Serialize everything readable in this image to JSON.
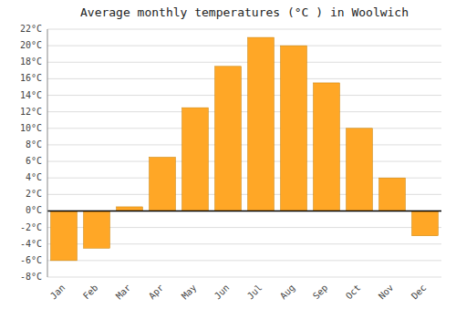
{
  "chart_data": {
    "type": "bar",
    "title": "Average monthly temperatures (°C ) in Woolwich",
    "categories": [
      "Jan",
      "Feb",
      "Mar",
      "Apr",
      "May",
      "Jun",
      "Jul",
      "Aug",
      "Sep",
      "Oct",
      "Nov",
      "Dec"
    ],
    "values": [
      -6.0,
      -4.5,
      0.5,
      6.5,
      12.5,
      17.5,
      21.0,
      20.0,
      15.5,
      10.0,
      4.0,
      -3.0
    ],
    "color": "#FFA726",
    "ylim": [
      -8,
      22
    ],
    "yticks": [
      {
        "value": -8,
        "label": "-8°C"
      },
      {
        "value": -6,
        "label": "-6°C"
      },
      {
        "value": -4,
        "label": "-4°C"
      },
      {
        "value": -2,
        "label": "-2°C"
      },
      {
        "value": 0,
        "label": "0°C"
      },
      {
        "value": 2,
        "label": "2°C"
      },
      {
        "value": 4,
        "label": "4°C"
      },
      {
        "value": 6,
        "label": "6°C"
      },
      {
        "value": 8,
        "label": "8°C"
      },
      {
        "value": 10,
        "label": "10°C"
      },
      {
        "value": 12,
        "label": "12°C"
      },
      {
        "value": 14,
        "label": "14°C"
      },
      {
        "value": 16,
        "label": "16°C"
      },
      {
        "value": 18,
        "label": "18°C"
      },
      {
        "value": 20,
        "label": "20°C"
      },
      {
        "value": 22,
        "label": "22°C"
      }
    ],
    "grid": true
  }
}
